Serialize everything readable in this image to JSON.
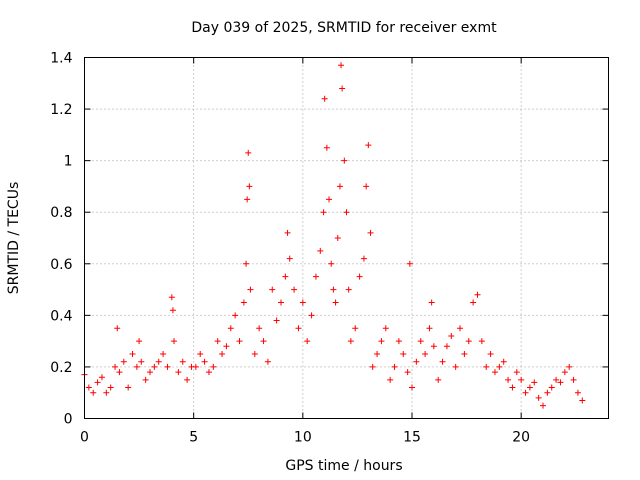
{
  "chart_data": {
    "type": "scatter",
    "title": "Day 039 of 2025, SRMTID for receiver exmt",
    "xlabel": "GPS time / hours",
    "ylabel": "SRMTID / TECUs",
    "xlim": [
      0,
      24
    ],
    "ylim": [
      0,
      1.4
    ],
    "xticks": [
      0,
      5,
      10,
      15,
      20
    ],
    "xtick_labels": [
      "0",
      "5",
      "10",
      "15",
      "20"
    ],
    "yticks": [
      0,
      0.2,
      0.4,
      0.6,
      0.8,
      1.0,
      1.2,
      1.4
    ],
    "ytick_labels": [
      "0",
      "0.2",
      "0.4",
      "0.6",
      "0.8",
      "1",
      "1.2",
      "1.4"
    ],
    "grid": true,
    "marker": "plus",
    "marker_color": "#ff0000",
    "series": [
      {
        "name": "exmt",
        "x": [
          0.0,
          0.2,
          0.4,
          0.6,
          0.8,
          1.0,
          1.2,
          1.4,
          1.5,
          1.6,
          1.8,
          2.0,
          2.2,
          2.4,
          2.5,
          2.6,
          2.8,
          3.0,
          3.2,
          3.4,
          3.6,
          3.8,
          4.0,
          4.05,
          4.1,
          4.3,
          4.5,
          4.7,
          4.9,
          5.1,
          5.3,
          5.5,
          5.7,
          5.9,
          6.1,
          6.3,
          6.5,
          6.7,
          6.9,
          7.1,
          7.3,
          7.4,
          7.45,
          7.5,
          7.55,
          7.6,
          7.8,
          8.0,
          8.2,
          8.4,
          8.6,
          8.8,
          9.0,
          9.2,
          9.3,
          9.4,
          9.6,
          9.8,
          10.0,
          10.2,
          10.4,
          10.6,
          10.8,
          10.95,
          11.0,
          11.1,
          11.2,
          11.3,
          11.4,
          11.5,
          11.6,
          11.7,
          11.75,
          11.8,
          11.9,
          12.0,
          12.1,
          12.2,
          12.4,
          12.6,
          12.8,
          12.9,
          13.0,
          13.1,
          13.2,
          13.4,
          13.6,
          13.8,
          14.0,
          14.2,
          14.4,
          14.6,
          14.8,
          14.9,
          15.0,
          15.2,
          15.4,
          15.6,
          15.8,
          15.9,
          16.0,
          16.2,
          16.4,
          16.6,
          16.8,
          17.0,
          17.2,
          17.4,
          17.6,
          17.8,
          18.0,
          18.2,
          18.4,
          18.6,
          18.8,
          19.0,
          19.2,
          19.4,
          19.6,
          19.8,
          20.0,
          20.2,
          20.4,
          20.6,
          20.8,
          21.0,
          21.2,
          21.4,
          21.6,
          21.8,
          22.0,
          22.2,
          22.4,
          22.6,
          22.8
        ],
        "y": [
          0.17,
          0.12,
          0.1,
          0.14,
          0.16,
          0.1,
          0.12,
          0.2,
          0.35,
          0.18,
          0.22,
          0.12,
          0.25,
          0.2,
          0.3,
          0.22,
          0.15,
          0.18,
          0.2,
          0.22,
          0.25,
          0.2,
          0.47,
          0.42,
          0.3,
          0.18,
          0.22,
          0.15,
          0.2,
          0.2,
          0.25,
          0.22,
          0.18,
          0.2,
          0.3,
          0.25,
          0.28,
          0.35,
          0.4,
          0.3,
          0.45,
          0.6,
          0.85,
          1.03,
          0.9,
          0.5,
          0.25,
          0.35,
          0.3,
          0.22,
          0.5,
          0.38,
          0.45,
          0.55,
          0.72,
          0.62,
          0.5,
          0.35,
          0.45,
          0.3,
          0.4,
          0.55,
          0.65,
          0.8,
          1.24,
          1.05,
          0.85,
          0.6,
          0.5,
          0.45,
          0.7,
          0.9,
          1.37,
          1.28,
          1.0,
          0.8,
          0.5,
          0.3,
          0.35,
          0.55,
          0.62,
          0.9,
          1.06,
          0.72,
          0.2,
          0.25,
          0.3,
          0.35,
          0.15,
          0.2,
          0.3,
          0.25,
          0.18,
          0.6,
          0.12,
          0.22,
          0.3,
          0.25,
          0.35,
          0.45,
          0.28,
          0.15,
          0.22,
          0.28,
          0.32,
          0.2,
          0.35,
          0.25,
          0.3,
          0.45,
          0.48,
          0.3,
          0.2,
          0.25,
          0.18,
          0.2,
          0.22,
          0.15,
          0.12,
          0.18,
          0.15,
          0.1,
          0.12,
          0.14,
          0.08,
          0.05,
          0.1,
          0.12,
          0.15,
          0.14,
          0.18,
          0.2,
          0.15,
          0.1,
          0.07
        ]
      }
    ]
  }
}
